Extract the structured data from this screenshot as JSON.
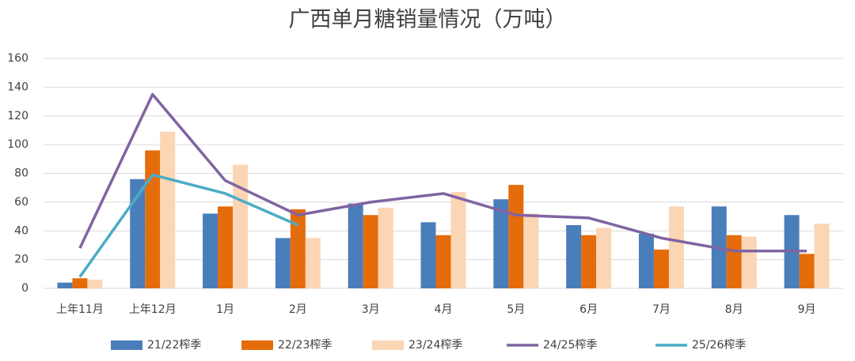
{
  "chart_data": {
    "type": "combo",
    "title": "广西单月糖销量情况（万吨）",
    "categories": [
      "上年11月",
      "上年12月",
      "1月",
      "2月",
      "3月",
      "4月",
      "5月",
      "6月",
      "7月",
      "8月",
      "9月"
    ],
    "series": [
      {
        "name": "21/22榨季",
        "type": "bar",
        "color": "#4a7ebb",
        "values": [
          4,
          76,
          52,
          35,
          59,
          46,
          62,
          44,
          38,
          57,
          51
        ]
      },
      {
        "name": "22/23榨季",
        "type": "bar",
        "color": "#e46c0a",
        "values": [
          7,
          96,
          57,
          55,
          51,
          37,
          72,
          37,
          27,
          37,
          24
        ]
      },
      {
        "name": "23/24榨季",
        "type": "bar",
        "color": "#fcd5b5",
        "values": [
          6,
          109,
          86,
          35,
          56,
          67,
          52,
          42,
          57,
          36,
          45
        ]
      },
      {
        "name": "24/25榨季",
        "type": "line",
        "color": "#8064a2",
        "values": [
          28,
          135,
          75,
          51,
          60,
          66,
          51,
          49,
          35,
          26,
          26
        ]
      },
      {
        "name": "25/26榨季",
        "type": "line",
        "color": "#4bacc6",
        "values": [
          8,
          79,
          66,
          44,
          null,
          null,
          null,
          null,
          null,
          null,
          null
        ]
      }
    ],
    "ylim": [
      0,
      160
    ],
    "yticks": [
      0,
      20,
      40,
      60,
      80,
      100,
      120,
      140,
      160
    ],
    "grid": true,
    "legend": "bottom"
  }
}
